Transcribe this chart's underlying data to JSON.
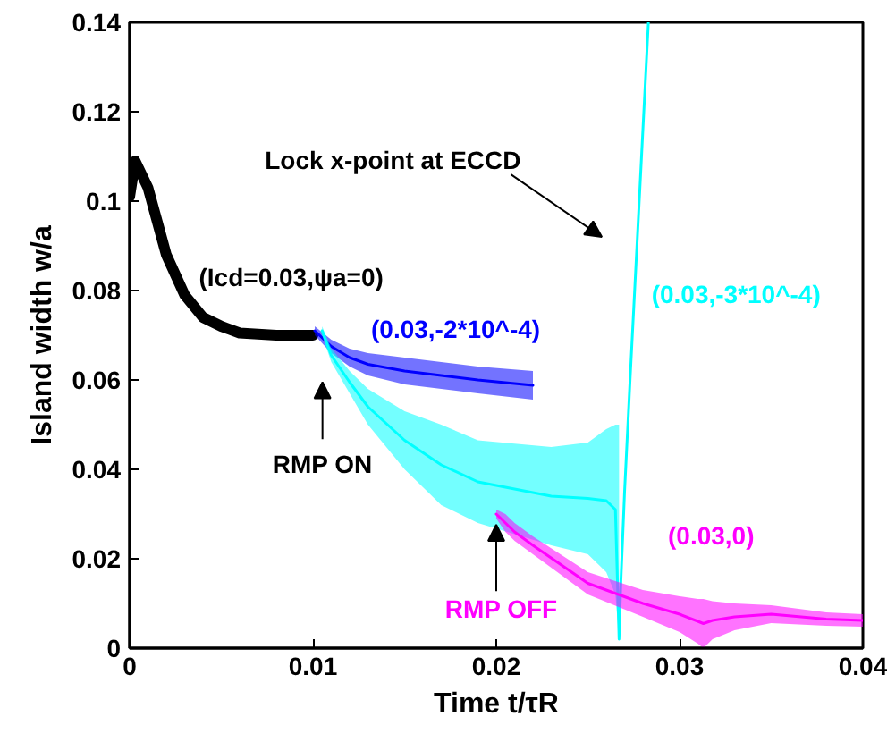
{
  "chart_data": {
    "type": "line",
    "xlabel": "Time t/τR",
    "ylabel": "Island width w/a",
    "xlim": [
      0,
      0.04
    ],
    "ylim": [
      0,
      0.14
    ],
    "xticks": [
      0,
      0.01,
      0.02,
      0.03,
      0.04
    ],
    "yticks": [
      0,
      0.02,
      0.04,
      0.06,
      0.08,
      0.1,
      0.12,
      0.14
    ],
    "grid": false,
    "legend": false,
    "series": [
      {
        "name": "(Icd=0.03,ψa=0)",
        "color": "#000000",
        "x": [
          0,
          0.0003,
          0.001,
          0.002,
          0.003,
          0.004,
          0.005,
          0.006,
          0.008,
          0.01
        ],
        "values": [
          0.101,
          0.109,
          0.103,
          0.088,
          0.079,
          0.074,
          0.072,
          0.0705,
          0.07,
          0.07
        ]
      },
      {
        "name": "(0.03,-2*10^-4)",
        "color": "#0000ff",
        "x": [
          0.0101,
          0.011,
          0.012,
          0.013,
          0.015,
          0.017,
          0.019,
          0.022
        ],
        "values": [
          0.071,
          0.0675,
          0.065,
          0.0635,
          0.062,
          0.061,
          0.06,
          0.0588
        ],
        "lower": [
          0.07,
          0.066,
          0.063,
          0.061,
          0.059,
          0.058,
          0.057,
          0.0556
        ],
        "upper": [
          0.072,
          0.069,
          0.067,
          0.066,
          0.065,
          0.064,
          0.063,
          0.062
        ]
      },
      {
        "name": "(0.03,-3*10^-4)",
        "color": "#00ffff",
        "x": [
          0.0105,
          0.011,
          0.012,
          0.013,
          0.015,
          0.017,
          0.019,
          0.023,
          0.025,
          0.026,
          0.0265,
          0.0267,
          0.0268,
          0.027,
          0.0273,
          0.0278,
          0.0283
        ],
        "values": [
          0.071,
          0.0655,
          0.0595,
          0.054,
          0.0465,
          0.041,
          0.0372,
          0.034,
          0.0335,
          0.033,
          0.031,
          0.002,
          0.015,
          0.035,
          0.06,
          0.1,
          0.14
        ],
        "lower": [
          0.07,
          0.064,
          0.057,
          0.05,
          0.04,
          0.032,
          0.028,
          0.023,
          0.021,
          0.017,
          0.012,
          0.002,
          null,
          null,
          null,
          null,
          null
        ],
        "upper": [
          0.072,
          0.067,
          0.062,
          0.058,
          0.053,
          0.05,
          0.0465,
          0.045,
          0.046,
          0.049,
          0.05,
          0.05,
          null,
          null,
          null,
          null,
          null
        ]
      },
      {
        "name": "(0.03,0)",
        "color": "#ff00ff",
        "x": [
          0.02,
          0.0205,
          0.021,
          0.022,
          0.025,
          0.028,
          0.03,
          0.031,
          0.0313,
          0.0318,
          0.033,
          0.035,
          0.038,
          0.04
        ],
        "values": [
          0.03,
          0.028,
          0.026,
          0.023,
          0.0145,
          0.01,
          0.0076,
          0.006,
          0.0055,
          0.0062,
          0.007,
          0.0076,
          0.0065,
          0.0062
        ],
        "lower": [
          0.029,
          0.026,
          0.024,
          0.021,
          0.012,
          0.007,
          0.0036,
          0.001,
          0,
          0.002,
          0.004,
          0.0056,
          0.005,
          0.0048
        ],
        "upper": [
          0.031,
          0.03,
          0.028,
          0.025,
          0.017,
          0.013,
          0.0116,
          0.011,
          0.011,
          0.0105,
          0.01,
          0.0096,
          0.008,
          0.0076
        ]
      }
    ],
    "annotations": [
      "RMP ON",
      {
        "text": "RMP OFF",
        "x": 0.02,
        "y": 0.03
      },
      "Lock x-point at ECCD"
    ]
  }
}
